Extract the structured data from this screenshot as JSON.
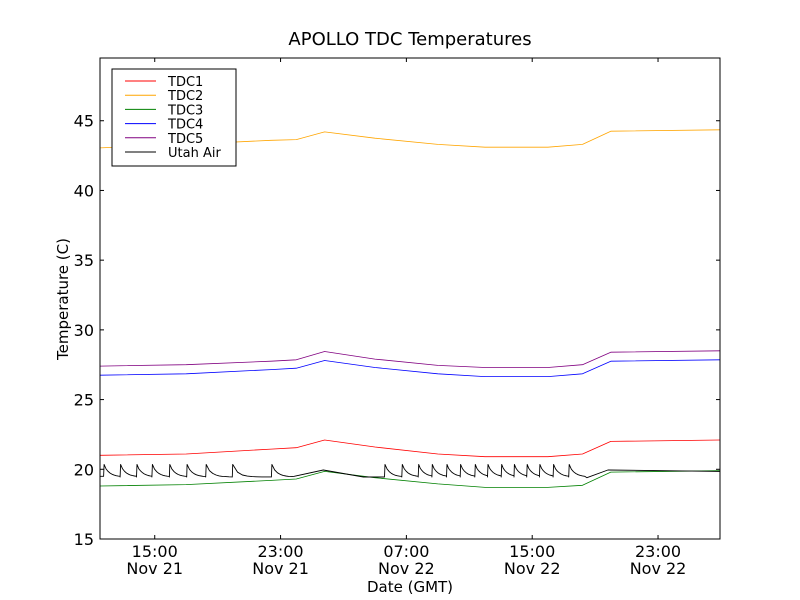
{
  "chart_data": {
    "type": "line",
    "title": "APOLLO TDC Temperatures",
    "xlabel": "Date (GMT)",
    "ylabel": "Temperature (C)",
    "x_units": "hours since Nov 21 00:00 GMT",
    "xlim": [
      11.52,
      50.94
    ],
    "ylim": [
      15,
      49.5
    ],
    "yticks": [
      15,
      20,
      25,
      30,
      35,
      40,
      45
    ],
    "ytick_labels": [
      "15",
      "20",
      "25",
      "30",
      "35",
      "40",
      "45"
    ],
    "xticks": [
      15,
      23,
      31,
      39,
      47
    ],
    "xtick_labels": [
      {
        "time": "15:00",
        "date": "Nov 21"
      },
      {
        "time": "23:00",
        "date": "Nov 21"
      },
      {
        "time": "07:00",
        "date": "Nov 22"
      },
      {
        "time": "15:00",
        "date": "Nov 22"
      },
      {
        "time": "23:00",
        "date": "Nov 22"
      }
    ],
    "grid": false,
    "legend_position": "top-left",
    "x": [
      11.52,
      17,
      22.4,
      24.0,
      25.8,
      29.0,
      33.0,
      36.0,
      40.0,
      42.2,
      44.0,
      50.94
    ],
    "series": [
      {
        "name": "TDC1",
        "color": "#ff0000",
        "values": [
          21.0,
          21.1,
          21.45,
          21.55,
          22.1,
          21.6,
          21.1,
          20.9,
          20.9,
          21.1,
          22.0,
          22.1
        ]
      },
      {
        "name": "TDC2",
        "color": "#ffa500",
        "values": [
          43.05,
          43.3,
          43.6,
          43.65,
          44.2,
          43.75,
          43.3,
          43.1,
          43.1,
          43.3,
          44.25,
          44.35
        ]
      },
      {
        "name": "TDC3",
        "color": "#008000",
        "values": [
          18.8,
          18.9,
          19.2,
          19.3,
          19.85,
          19.4,
          18.95,
          18.7,
          18.7,
          18.85,
          19.8,
          19.9
        ]
      },
      {
        "name": "TDC4",
        "color": "#0000ff",
        "values": [
          26.75,
          26.85,
          27.15,
          27.25,
          27.8,
          27.3,
          26.85,
          26.65,
          26.65,
          26.85,
          27.75,
          27.85
        ]
      },
      {
        "name": "TDC5",
        "color": "#800080",
        "values": [
          27.4,
          27.5,
          27.75,
          27.85,
          28.45,
          27.9,
          27.45,
          27.3,
          27.3,
          27.5,
          28.4,
          28.5
        ]
      },
      {
        "name": "Utah Air",
        "color": "#000000",
        "spike_times": [
          11.75,
          12.8,
          13.84,
          14.82,
          15.93,
          17.03,
          18.24,
          19.93,
          22.42,
          28.27,
          29.61,
          30.71,
          31.75,
          32.62,
          33.55,
          34.42,
          35.35,
          36.16,
          37.03,
          37.84,
          38.65,
          39.46,
          40.33,
          41.32
        ],
        "spike_peak": 20.35,
        "spike_trough": 19.45,
        "start_value": 19.5,
        "quiet_points": [
          [
            23.87,
            19.5
          ],
          [
            25.72,
            19.95
          ],
          [
            28.27,
            19.45
          ],
          [
            42.48,
            19.4
          ],
          [
            43.81,
            19.95
          ],
          [
            50.94,
            19.85
          ]
        ]
      }
    ]
  }
}
